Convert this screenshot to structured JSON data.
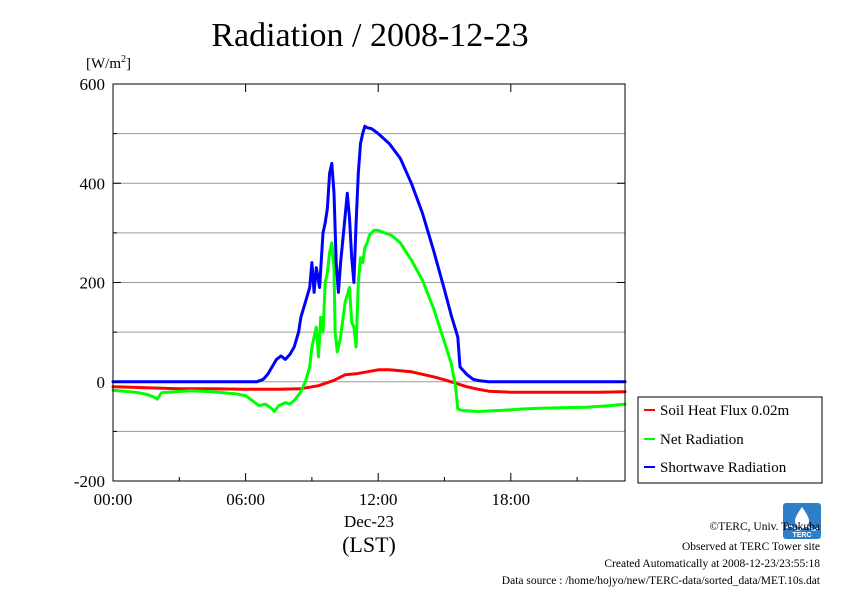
{
  "chart_data": {
    "type": "line",
    "title": "Radiation / 2008-12-23",
    "ylabel": "[W/m2]",
    "ylabel_base": "[W/m",
    "ylabel_sup": "2",
    "ylabel_end": "]",
    "ylim": [
      -200,
      600
    ],
    "yticks": [
      -200,
      0,
      200,
      400,
      600
    ],
    "ygrid": [
      -100,
      100,
      300,
      500
    ],
    "xlim": [
      0,
      23.1667
    ],
    "xticks": [
      0,
      6,
      12,
      18
    ],
    "xtick_labels": [
      "00:00",
      "06:00",
      "12:00",
      "18:00"
    ],
    "x_units": "hours (LST)",
    "x_date_label": "Dec-23",
    "x_tz_label": "(LST)",
    "grid": "horizontal",
    "legend_position": "bottom-right outside",
    "series": [
      {
        "name": "Soil Heat Flux 0.02m",
        "color": "#ff0000",
        "points": [
          [
            0,
            -10
          ],
          [
            1.5,
            -12
          ],
          [
            3,
            -14
          ],
          [
            4.5,
            -14
          ],
          [
            6,
            -15
          ],
          [
            7.5,
            -15
          ],
          [
            8.5,
            -14
          ],
          [
            9.3,
            -8
          ],
          [
            10,
            3
          ],
          [
            10.5,
            14
          ],
          [
            11,
            16
          ],
          [
            11.5,
            20
          ],
          [
            12,
            24
          ],
          [
            12.5,
            24
          ],
          [
            13,
            22
          ],
          [
            13.5,
            20
          ],
          [
            14,
            15
          ],
          [
            14.5,
            10
          ],
          [
            15,
            4
          ],
          [
            15.5,
            -3
          ],
          [
            16,
            -10
          ],
          [
            16.5,
            -15
          ],
          [
            17,
            -19
          ],
          [
            18,
            -21
          ],
          [
            19,
            -21
          ],
          [
            20,
            -21
          ],
          [
            21,
            -21
          ],
          [
            22,
            -21
          ],
          [
            23.17,
            -20
          ]
        ]
      },
      {
        "name": "Net Radiation",
        "color": "#00ff00",
        "points": [
          [
            0,
            -17
          ],
          [
            0.5,
            -19
          ],
          [
            1,
            -21
          ],
          [
            1.5,
            -25
          ],
          [
            1.8,
            -30
          ],
          [
            2,
            -35
          ],
          [
            2.2,
            -22
          ],
          [
            2.8,
            -20
          ],
          [
            3.5,
            -18
          ],
          [
            4.5,
            -20
          ],
          [
            5,
            -22
          ],
          [
            5.5,
            -24
          ],
          [
            6,
            -28
          ],
          [
            6.3,
            -38
          ],
          [
            6.6,
            -48
          ],
          [
            6.9,
            -45
          ],
          [
            7.2,
            -55
          ],
          [
            7.3,
            -60
          ],
          [
            7.5,
            -48
          ],
          [
            7.8,
            -42
          ],
          [
            8,
            -45
          ],
          [
            8.2,
            -38
          ],
          [
            8.5,
            -20
          ],
          [
            8.7,
            0
          ],
          [
            8.9,
            30
          ],
          [
            9,
            70
          ],
          [
            9.2,
            110
          ],
          [
            9.3,
            50
          ],
          [
            9.4,
            130
          ],
          [
            9.5,
            100
          ],
          [
            9.6,
            200
          ],
          [
            9.7,
            220
          ],
          [
            9.8,
            260
          ],
          [
            9.9,
            280
          ],
          [
            10,
            230
          ],
          [
            10.05,
            100
          ],
          [
            10.15,
            60
          ],
          [
            10.3,
            90
          ],
          [
            10.5,
            160
          ],
          [
            10.7,
            190
          ],
          [
            10.8,
            120
          ],
          [
            10.9,
            110
          ],
          [
            11,
            70
          ],
          [
            11.1,
            200
          ],
          [
            11.2,
            250
          ],
          [
            11.3,
            240
          ],
          [
            11.4,
            270
          ],
          [
            11.5,
            280
          ],
          [
            11.6,
            295
          ],
          [
            11.8,
            305
          ],
          [
            12,
            305
          ],
          [
            12.3,
            300
          ],
          [
            12.6,
            295
          ],
          [
            13,
            280
          ],
          [
            13.5,
            245
          ],
          [
            14,
            205
          ],
          [
            14.5,
            148
          ],
          [
            15,
            80
          ],
          [
            15.3,
            38
          ],
          [
            15.5,
            -10
          ],
          [
            15.6,
            -55
          ],
          [
            15.8,
            -58
          ],
          [
            16.5,
            -60
          ],
          [
            17.5,
            -58
          ],
          [
            18.5,
            -55
          ],
          [
            19.5,
            -53
          ],
          [
            20.5,
            -52
          ],
          [
            21.5,
            -51
          ],
          [
            22.5,
            -48
          ],
          [
            23.17,
            -45
          ]
        ]
      },
      {
        "name": "Shortwave Radiation",
        "color": "#0000ff",
        "points": [
          [
            0,
            0
          ],
          [
            1,
            0
          ],
          [
            2,
            0
          ],
          [
            3,
            0
          ],
          [
            4,
            0
          ],
          [
            5,
            0
          ],
          [
            6,
            0
          ],
          [
            6.5,
            0
          ],
          [
            6.8,
            5
          ],
          [
            7,
            15
          ],
          [
            7.2,
            30
          ],
          [
            7.4,
            45
          ],
          [
            7.6,
            52
          ],
          [
            7.8,
            45
          ],
          [
            8,
            55
          ],
          [
            8.2,
            70
          ],
          [
            8.4,
            100
          ],
          [
            8.5,
            130
          ],
          [
            8.7,
            160
          ],
          [
            8.9,
            190
          ],
          [
            9,
            240
          ],
          [
            9.1,
            180
          ],
          [
            9.2,
            230
          ],
          [
            9.35,
            190
          ],
          [
            9.5,
            300
          ],
          [
            9.6,
            320
          ],
          [
            9.7,
            350
          ],
          [
            9.8,
            420
          ],
          [
            9.9,
            440
          ],
          [
            10,
            380
          ],
          [
            10.1,
            240
          ],
          [
            10.2,
            180
          ],
          [
            10.3,
            240
          ],
          [
            10.45,
            310
          ],
          [
            10.6,
            380
          ],
          [
            10.7,
            330
          ],
          [
            10.8,
            250
          ],
          [
            10.9,
            200
          ],
          [
            11,
            320
          ],
          [
            11.1,
            420
          ],
          [
            11.2,
            480
          ],
          [
            11.3,
            500
          ],
          [
            11.4,
            515
          ],
          [
            11.5,
            512
          ],
          [
            11.7,
            510
          ],
          [
            12,
            500
          ],
          [
            12.5,
            480
          ],
          [
            13,
            450
          ],
          [
            13.5,
            400
          ],
          [
            14,
            340
          ],
          [
            14.5,
            265
          ],
          [
            15,
            185
          ],
          [
            15.3,
            135
          ],
          [
            15.6,
            90
          ],
          [
            15.7,
            30
          ],
          [
            16,
            15
          ],
          [
            16.3,
            5
          ],
          [
            16.6,
            2
          ],
          [
            17,
            0
          ],
          [
            18,
            0
          ],
          [
            19,
            0
          ],
          [
            20,
            0
          ],
          [
            21,
            0
          ],
          [
            22,
            0
          ],
          [
            23.17,
            0
          ]
        ]
      }
    ]
  },
  "legend": {
    "items": [
      {
        "label": "Soil Heat Flux 0.02m",
        "color": "#ff0000"
      },
      {
        "label": "Net Radiation",
        "color": "#00ff00"
      },
      {
        "label": "Shortwave Radiation",
        "color": "#0000ff"
      }
    ]
  },
  "credits": {
    "line1": "©TERC, Univ. Tsukuba",
    "line2": "Observed at TERC Tower site",
    "line3": "Created Automatically at 2008-12-23/23:55:18",
    "line4": "Data source : /home/hojyo/new/TERC-data/sorted_data/MET.10s.dat",
    "logo_text": "TERC"
  }
}
